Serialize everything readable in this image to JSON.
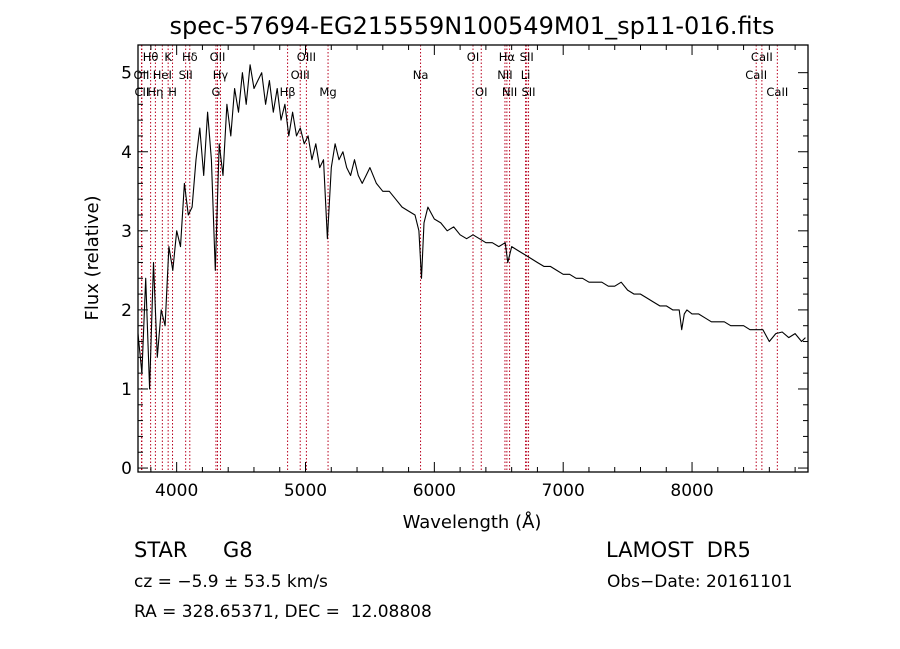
{
  "figure": {
    "title": "spec-57694-EG215559N100549M01_sp11-016.fits",
    "object_class": "STAR",
    "subclass": "G8",
    "survey": "LAMOST  DR5",
    "cz_text": "cz = −5.9 ± 53.5 km/s",
    "obs_date_text": "Obs−Date: 20161101",
    "radec_text": "RA = 328.65371, DEC =  12.08808"
  },
  "chart_data": {
    "type": "line",
    "title": "spec-57694-EG215559N100549M01_sp11-016.fits",
    "xlabel": "Wavelength (Å)",
    "ylabel": "Flux (relative)",
    "xlim": [
      3700,
      8900
    ],
    "ylim": [
      -0.05,
      5.35
    ],
    "x_ticks": [
      4000,
      5000,
      6000,
      7000,
      8000
    ],
    "y_ticks": [
      0,
      1,
      2,
      3,
      4,
      5
    ],
    "grid": false,
    "series": [
      {
        "x": [
          3700,
          3730,
          3760,
          3790,
          3820,
          3850,
          3880,
          3910,
          3940,
          3970,
          4000,
          4030,
          4060,
          4090,
          4120,
          4150,
          4180,
          4210,
          4240,
          4270,
          4300,
          4330,
          4360,
          4390,
          4420,
          4450,
          4480,
          4510,
          4540,
          4570,
          4600,
          4630,
          4660,
          4690,
          4720,
          4750,
          4780,
          4810,
          4840,
          4870,
          4900,
          4930,
          4960,
          4990,
          5020,
          5050,
          5080,
          5110,
          5140,
          5170,
          5200,
          5230,
          5260,
          5290,
          5320,
          5350,
          5380,
          5410,
          5440,
          5470,
          5500,
          5550,
          5600,
          5650,
          5700,
          5750,
          5800,
          5850,
          5880,
          5900,
          5920,
          5950,
          6000,
          6050,
          6100,
          6150,
          6200,
          6250,
          6300,
          6350,
          6400,
          6450,
          6500,
          6550,
          6570,
          6600,
          6650,
          6700,
          6750,
          6800,
          6850,
          6900,
          6950,
          7000,
          7050,
          7100,
          7150,
          7200,
          7250,
          7300,
          7350,
          7400,
          7450,
          7500,
          7550,
          7600,
          7650,
          7700,
          7750,
          7800,
          7850,
          7900,
          7920,
          7940,
          7960,
          8000,
          8050,
          8100,
          8150,
          8200,
          8250,
          8300,
          8350,
          8400,
          8450,
          8500,
          8550,
          8600,
          8650,
          8700,
          8750,
          8800,
          8850,
          8880
        ],
        "y": [
          1.7,
          1.2,
          2.4,
          1.0,
          2.6,
          1.4,
          2.0,
          1.8,
          2.8,
          2.5,
          3.0,
          2.8,
          3.6,
          3.2,
          3.3,
          3.9,
          4.3,
          3.7,
          4.5,
          3.9,
          2.5,
          4.1,
          3.7,
          4.6,
          4.2,
          4.8,
          4.5,
          5.0,
          4.6,
          5.1,
          4.8,
          4.9,
          5.0,
          4.6,
          4.9,
          4.5,
          4.8,
          4.4,
          4.6,
          4.2,
          4.5,
          4.2,
          4.3,
          4.1,
          4.2,
          3.9,
          4.1,
          3.8,
          3.9,
          2.9,
          3.8,
          4.1,
          3.9,
          4.0,
          3.8,
          3.7,
          3.9,
          3.7,
          3.6,
          3.7,
          3.8,
          3.6,
          3.5,
          3.5,
          3.4,
          3.3,
          3.25,
          3.2,
          3.0,
          2.4,
          3.1,
          3.3,
          3.15,
          3.1,
          3.0,
          3.05,
          2.95,
          2.9,
          2.95,
          2.9,
          2.85,
          2.85,
          2.8,
          2.85,
          2.6,
          2.8,
          2.75,
          2.7,
          2.65,
          2.6,
          2.55,
          2.55,
          2.5,
          2.45,
          2.45,
          2.4,
          2.4,
          2.35,
          2.35,
          2.35,
          2.3,
          2.3,
          2.35,
          2.25,
          2.2,
          2.2,
          2.15,
          2.1,
          2.05,
          2.05,
          2.0,
          2.0,
          1.75,
          1.95,
          2.0,
          1.95,
          1.95,
          1.9,
          1.85,
          1.85,
          1.85,
          1.8,
          1.8,
          1.8,
          1.75,
          1.75,
          1.75,
          1.6,
          1.7,
          1.72,
          1.65,
          1.7,
          1.6,
          1.65
        ]
      }
    ],
    "line_markers": [
      {
        "label": "Hθ",
        "wavelength": 3798,
        "row": 0
      },
      {
        "label": "OII",
        "wavelength": 3727,
        "row": 1
      },
      {
        "label": "CII",
        "wavelength": 3730,
        "row": 2
      },
      {
        "label": "Hη",
        "wavelength": 3835,
        "row": 2
      },
      {
        "label": "HeI",
        "wavelength": 3889,
        "row": 1
      },
      {
        "label": "K",
        "wavelength": 3934,
        "row": 0
      },
      {
        "label": "H",
        "wavelength": 3968,
        "row": 2
      },
      {
        "label": "Hδ",
        "wavelength": 4102,
        "row": 0
      },
      {
        "label": "SII",
        "wavelength": 4070,
        "row": 1
      },
      {
        "label": "OII",
        "wavelength": 4317,
        "row": 0
      },
      {
        "label": "Hγ",
        "wavelength": 4340,
        "row": 1
      },
      {
        "label": "G",
        "wavelength": 4305,
        "row": 2
      },
      {
        "label": "Hβ",
        "wavelength": 4861,
        "row": 2
      },
      {
        "label": "OIII",
        "wavelength": 4959,
        "row": 1
      },
      {
        "label": "OIII",
        "wavelength": 5007,
        "row": 0
      },
      {
        "label": "Mg",
        "wavelength": 5175,
        "row": 2
      },
      {
        "label": "Na",
        "wavelength": 5893,
        "row": 1
      },
      {
        "label": "OI",
        "wavelength": 6300,
        "row": 0
      },
      {
        "label": "OI",
        "wavelength": 6364,
        "row": 2
      },
      {
        "label": "Hα",
        "wavelength": 6563,
        "row": 0
      },
      {
        "label": "NII",
        "wavelength": 6548,
        "row": 1
      },
      {
        "label": "NII",
        "wavelength": 6584,
        "row": 2
      },
      {
        "label": "SII",
        "wavelength": 6717,
        "row": 0
      },
      {
        "label": "Li",
        "wavelength": 6708,
        "row": 1
      },
      {
        "label": "SII",
        "wavelength": 6731,
        "row": 2
      },
      {
        "label": "CaII",
        "wavelength": 8542,
        "row": 0
      },
      {
        "label": "CaII",
        "wavelength": 8498,
        "row": 1
      },
      {
        "label": "CaII",
        "wavelength": 8662,
        "row": 2
      }
    ]
  }
}
